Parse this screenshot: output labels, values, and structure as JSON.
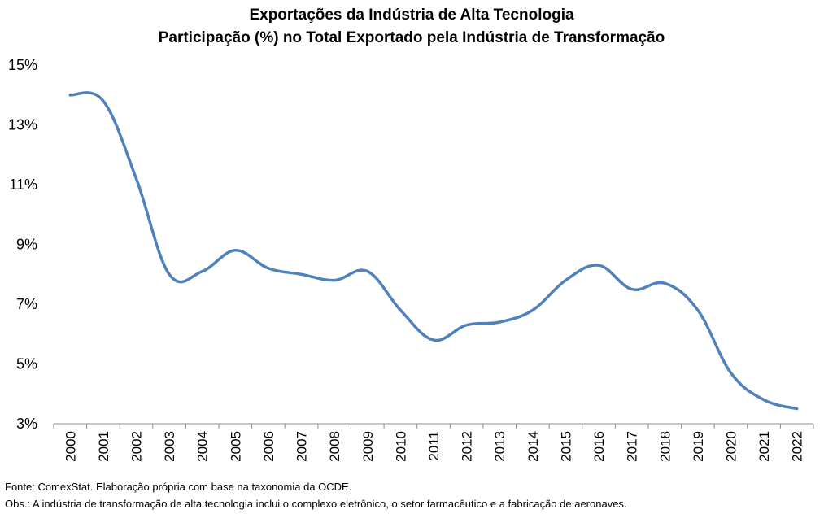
{
  "chart_data": {
    "type": "line",
    "title": "Exportações da Indústria de Alta Tecnologia",
    "subtitle": "Participação (%) no Total Exportado pela Indústria de Transformação",
    "xlabel": "",
    "ylabel": "",
    "ylim": [
      3,
      15
    ],
    "ytick_values": [
      3,
      5,
      7,
      9,
      11,
      13,
      15
    ],
    "ytick_labels": [
      "3%",
      "5%",
      "7%",
      "9%",
      "11%",
      "13%",
      "15%"
    ],
    "categories": [
      "2000",
      "2001",
      "2002",
      "2003",
      "2004",
      "2005",
      "2006",
      "2007",
      "2008",
      "2009",
      "2010",
      "2011",
      "2012",
      "2013",
      "2014",
      "2015",
      "2016",
      "2017",
      "2018",
      "2019",
      "2020",
      "2021",
      "2022"
    ],
    "series": [
      {
        "values": [
          14.0,
          13.8,
          11.2,
          8.0,
          8.1,
          8.8,
          8.2,
          8.0,
          7.8,
          8.1,
          6.8,
          5.8,
          6.3,
          6.4,
          6.8,
          7.8,
          8.3,
          7.5,
          7.7,
          6.8,
          4.7,
          3.8,
          3.5
        ],
        "color": "#4f81bd"
      }
    ],
    "grid": false,
    "legend": "none"
  },
  "footnotes": {
    "source": "Fonte: ComexStat. Elaboração própria  com base na taxonomia da OCDE.",
    "obs": "Obs.:  A indústria de transformação de alta tecnologia inclui o complexo eletrônico, o setor farmacêutico e a fabricação de aeronaves."
  }
}
